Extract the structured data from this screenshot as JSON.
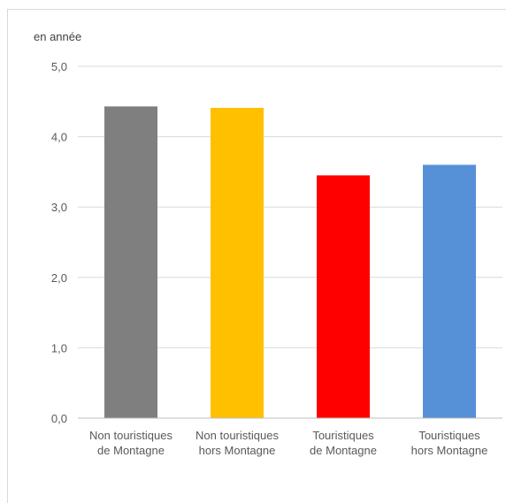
{
  "chart_data": {
    "type": "bar",
    "unit_label": "en année",
    "categories": [
      [
        "Non touristiques",
        "de Montagne"
      ],
      [
        "Non touristiques",
        "hors Montagne"
      ],
      [
        "Touristiques",
        "de Montagne"
      ],
      [
        "Touristiques",
        "hors Montagne"
      ]
    ],
    "values": [
      4.43,
      4.41,
      3.45,
      3.6
    ],
    "colors": [
      "#7f7f7f",
      "#ffc000",
      "#ff0000",
      "#5690d6"
    ],
    "ylim": [
      0,
      5
    ],
    "yticks": [
      "0,0",
      "1,0",
      "2,0",
      "3,0",
      "4,0",
      "5,0"
    ],
    "grid": true,
    "legend": "none"
  }
}
